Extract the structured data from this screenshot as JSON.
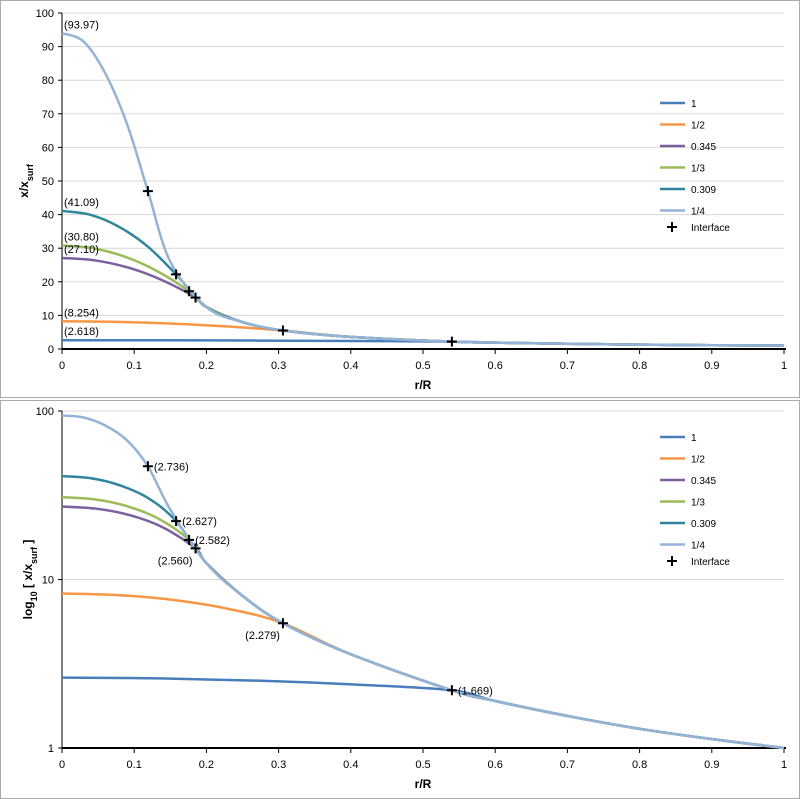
{
  "chart_data": [
    {
      "type": "line",
      "xlabel": "r/R",
      "ylabel": "x/x",
      "ylabel_sub": "surf",
      "xlim": [
        0,
        1
      ],
      "ylim": [
        0,
        100
      ],
      "yscale": "linear",
      "grid": "horizontal",
      "legend": "right",
      "xticks": [
        "0",
        "0.1",
        "0.2",
        "0.3",
        "0.4",
        "0.5",
        "0.6",
        "0.7",
        "0.8",
        "0.9",
        "1"
      ],
      "yticks": [
        "0",
        "10",
        "20",
        "30",
        "40",
        "50",
        "60",
        "70",
        "80",
        "90",
        "100"
      ],
      "annotations": [
        {
          "text": "(93.97)",
          "x": 0,
          "y": 93.97
        },
        {
          "text": "(41.09)",
          "x": 0,
          "y": 41.09
        },
        {
          "text": "(30.80)",
          "x": 0,
          "y": 30.8
        },
        {
          "text": "(27.10)",
          "x": 0,
          "y": 27.1
        },
        {
          "text": "(8.254)",
          "x": 0,
          "y": 8.254
        },
        {
          "text": "(2.618)",
          "x": 0,
          "y": 2.618
        }
      ]
    },
    {
      "type": "line",
      "xlabel": "r/R",
      "ylabel": "log",
      "ylabel_sub1": "10",
      "ylabel_mid": " [ x/x",
      "ylabel_sub2": "surf",
      "ylabel_end": " ]",
      "xlim": [
        0,
        1
      ],
      "ylim": [
        1,
        100
      ],
      "yscale": "log",
      "grid": "horizontal",
      "legend": "right",
      "xticks": [
        "0",
        "0.1",
        "0.2",
        "0.3",
        "0.4",
        "0.5",
        "0.6",
        "0.7",
        "0.8",
        "0.9",
        "1"
      ],
      "yticks": [
        "1",
        "10",
        "100"
      ],
      "annotations": [
        {
          "text": "(2.736)",
          "x": 0.119,
          "y": 47,
          "side": "right"
        },
        {
          "text": "(2.627)",
          "x": 0.158,
          "y": 22.2,
          "side": "right"
        },
        {
          "text": "(2.582)",
          "x": 0.176,
          "y": 17.2,
          "side": "right"
        },
        {
          "text": "(2.560)",
          "x": 0.185,
          "y": 15.3,
          "side": "left"
        },
        {
          "text": "(2.279)",
          "x": 0.306,
          "y": 5.5,
          "side": "left"
        },
        {
          "text": "(1.669)",
          "x": 0.54,
          "y": 2.2,
          "side": "right"
        }
      ]
    }
  ],
  "series": [
    {
      "name": "1",
      "color": "#4a7ebb",
      "interface": [
        0.54,
        2.2
      ],
      "points": [
        [
          0,
          2.618
        ],
        [
          0.135,
          2.59
        ],
        [
          0.27,
          2.51
        ],
        [
          0.405,
          2.38
        ],
        [
          0.54,
          2.2
        ],
        [
          0.6,
          1.9
        ],
        [
          0.7,
          1.55
        ],
        [
          0.8,
          1.3
        ],
        [
          0.9,
          1.13
        ],
        [
          1,
          1
        ]
      ]
    },
    {
      "name": "1/2",
      "color": "#f79646",
      "interface": [
        0.306,
        5.5
      ],
      "points": [
        [
          0,
          8.254
        ],
        [
          0.077,
          8.08
        ],
        [
          0.153,
          7.57
        ],
        [
          0.23,
          6.7
        ],
        [
          0.306,
          5.5
        ],
        [
          0.4,
          3.6
        ],
        [
          0.54,
          2.2
        ],
        [
          0.6,
          1.9
        ],
        [
          0.7,
          1.55
        ],
        [
          0.8,
          1.3
        ],
        [
          0.9,
          1.13
        ],
        [
          1,
          1
        ]
      ]
    },
    {
      "name": "0.345",
      "color": "#7d5fa0",
      "interface": [
        0.185,
        15.3
      ],
      "points": [
        [
          0,
          27.1
        ],
        [
          0.046,
          26.36
        ],
        [
          0.093,
          24.15
        ],
        [
          0.139,
          20.46
        ],
        [
          0.185,
          15.3
        ],
        [
          0.2,
          12.5
        ],
        [
          0.25,
          8.0
        ],
        [
          0.306,
          5.5
        ],
        [
          0.4,
          3.6
        ],
        [
          0.54,
          2.2
        ],
        [
          0.6,
          1.9
        ],
        [
          0.7,
          1.55
        ],
        [
          0.8,
          1.3
        ],
        [
          0.9,
          1.13
        ],
        [
          1,
          1
        ]
      ]
    },
    {
      "name": "1/3",
      "color": "#9bbb59",
      "interface": [
        0.176,
        17.2
      ],
      "points": [
        [
          0,
          30.8
        ],
        [
          0.044,
          29.95
        ],
        [
          0.088,
          27.4
        ],
        [
          0.132,
          23.15
        ],
        [
          0.176,
          17.2
        ],
        [
          0.2,
          12.5
        ],
        [
          0.25,
          8.0
        ],
        [
          0.306,
          5.5
        ],
        [
          0.4,
          3.6
        ],
        [
          0.54,
          2.2
        ],
        [
          0.6,
          1.9
        ],
        [
          0.7,
          1.55
        ],
        [
          0.8,
          1.3
        ],
        [
          0.9,
          1.13
        ],
        [
          1,
          1
        ]
      ]
    },
    {
      "name": "0.309",
      "color": "#31859c",
      "interface": [
        0.158,
        22.2
      ],
      "points": [
        [
          0,
          41.09
        ],
        [
          0.04,
          39.91
        ],
        [
          0.079,
          36.37
        ],
        [
          0.119,
          30.46
        ],
        [
          0.158,
          22.2
        ],
        [
          0.2,
          12.5
        ],
        [
          0.25,
          8.0
        ],
        [
          0.306,
          5.5
        ],
        [
          0.4,
          3.6
        ],
        [
          0.54,
          2.2
        ],
        [
          0.6,
          1.9
        ],
        [
          0.7,
          1.55
        ],
        [
          0.8,
          1.3
        ],
        [
          0.9,
          1.13
        ],
        [
          1,
          1
        ]
      ]
    },
    {
      "name": "1/4",
      "color": "#95b3d7",
      "interface": [
        0.119,
        47
      ],
      "points": [
        [
          0,
          93.97
        ],
        [
          0.03,
          91.5
        ],
        [
          0.06,
          82
        ],
        [
          0.09,
          67
        ],
        [
          0.119,
          47
        ],
        [
          0.15,
          26
        ],
        [
          0.2,
          12.5
        ],
        [
          0.25,
          8.0
        ],
        [
          0.306,
          5.5
        ],
        [
          0.4,
          3.6
        ],
        [
          0.54,
          2.2
        ],
        [
          0.6,
          1.9
        ],
        [
          0.7,
          1.55
        ],
        [
          0.8,
          1.3
        ],
        [
          0.9,
          1.13
        ],
        [
          1,
          1
        ]
      ]
    }
  ],
  "legend_interface": "Interface"
}
